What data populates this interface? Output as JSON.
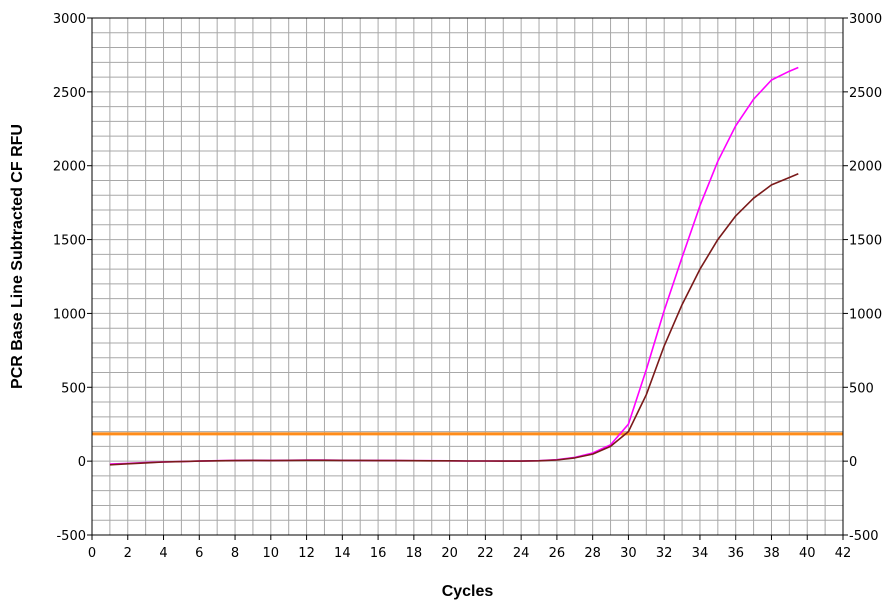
{
  "chart_data": {
    "type": "line",
    "title": "",
    "xlabel": "Cycles",
    "ylabel": "PCR Base Line Subtracted CF RFU",
    "xlim": [
      0,
      42
    ],
    "ylim": [
      -500,
      3000
    ],
    "x_ticks": [
      "0",
      "2",
      "4",
      "6",
      "8",
      "10",
      "12",
      "14",
      "16",
      "18",
      "20",
      "22",
      "24",
      "26",
      "28",
      "30",
      "32",
      "34",
      "36",
      "38",
      "40",
      "42"
    ],
    "y_ticks": [
      "-500",
      "0",
      "500",
      "1000",
      "1500",
      "2000",
      "2500",
      "3000"
    ],
    "y_ticks_right": [
      "-500",
      "0",
      "500",
      "1000",
      "1500",
      "2000",
      "2500",
      "3000"
    ],
    "grid": true,
    "threshold": {
      "value": 185,
      "color": "#ff8c1a"
    },
    "series": [
      {
        "color": "#ff00ff",
        "x": [
          1,
          2,
          3,
          4,
          5,
          6,
          7,
          8,
          9,
          10,
          11,
          12,
          13,
          14,
          15,
          16,
          17,
          18,
          19,
          20,
          21,
          22,
          23,
          24,
          25,
          26,
          27,
          28,
          29,
          30,
          31,
          32,
          33,
          34,
          35,
          36,
          37,
          38,
          39,
          39.5
        ],
        "y": [
          -20,
          -15,
          -10,
          -5,
          -3,
          0,
          3,
          5,
          6,
          5,
          6,
          8,
          7,
          6,
          5,
          5,
          4,
          3,
          3,
          2,
          1,
          1,
          0,
          0,
          3,
          10,
          25,
          55,
          110,
          250,
          620,
          1020,
          1380,
          1730,
          2030,
          2270,
          2450,
          2580,
          2640,
          2665
        ]
      },
      {
        "color": "#7a1a1a",
        "x": [
          1,
          2,
          3,
          4,
          5,
          6,
          7,
          8,
          9,
          10,
          11,
          12,
          13,
          14,
          15,
          16,
          17,
          18,
          19,
          20,
          21,
          22,
          23,
          24,
          25,
          26,
          27,
          28,
          29,
          30,
          31,
          32,
          33,
          34,
          35,
          36,
          37,
          38,
          39,
          39.5
        ],
        "y": [
          -25,
          -18,
          -12,
          -6,
          -3,
          0,
          2,
          4,
          5,
          4,
          5,
          6,
          6,
          5,
          5,
          4,
          4,
          3,
          2,
          2,
          1,
          1,
          0,
          0,
          2,
          8,
          22,
          48,
          100,
          200,
          450,
          780,
          1060,
          1300,
          1500,
          1660,
          1780,
          1870,
          1920,
          1945
        ]
      }
    ]
  }
}
